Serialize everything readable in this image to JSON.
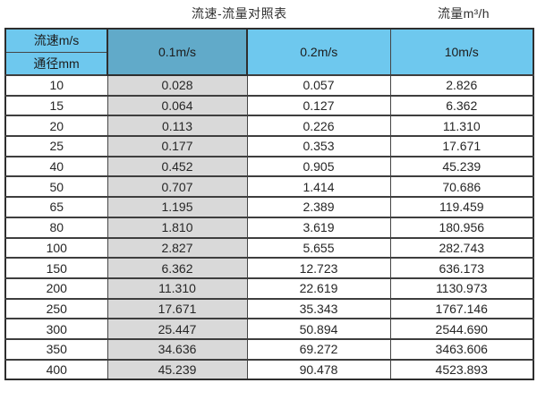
{
  "captions": {
    "title": "流速-流量对照表",
    "unit": "流量m³/h"
  },
  "table": {
    "corner_top": "流速m/s",
    "corner_bottom": "通径mm",
    "columns": [
      "0.1m/s",
      "0.2m/s",
      "10m/s"
    ],
    "rows": [
      [
        "10",
        "0.028",
        "0.057",
        "2.826"
      ],
      [
        "15",
        "0.064",
        "0.127",
        "6.362"
      ],
      [
        "20",
        "0.113",
        "0.226",
        "11.310"
      ],
      [
        "25",
        "0.177",
        "0.353",
        "17.671"
      ],
      [
        "40",
        "0.452",
        "0.905",
        "45.239"
      ],
      [
        "50",
        "0.707",
        "1.414",
        "70.686"
      ],
      [
        "65",
        "1.195",
        "2.389",
        "119.459"
      ],
      [
        "80",
        "1.810",
        "3.619",
        "180.956"
      ],
      [
        "100",
        "2.827",
        "5.655",
        "282.743"
      ],
      [
        "150",
        "6.362",
        "12.723",
        "636.173"
      ],
      [
        "200",
        "11.310",
        "22.619",
        "1130.973"
      ],
      [
        "250",
        "17.671",
        "35.343",
        "1767.146"
      ],
      [
        "300",
        "25.447",
        "50.894",
        "2544.690"
      ],
      [
        "350",
        "34.636",
        "69.272",
        "3463.606"
      ],
      [
        "400",
        "45.239",
        "90.478",
        "4523.893"
      ]
    ]
  },
  "colors": {
    "header_blue": "#6ec8ee",
    "header_dark_blue": "#61aac9",
    "column_gray": "#d9d9d9"
  }
}
